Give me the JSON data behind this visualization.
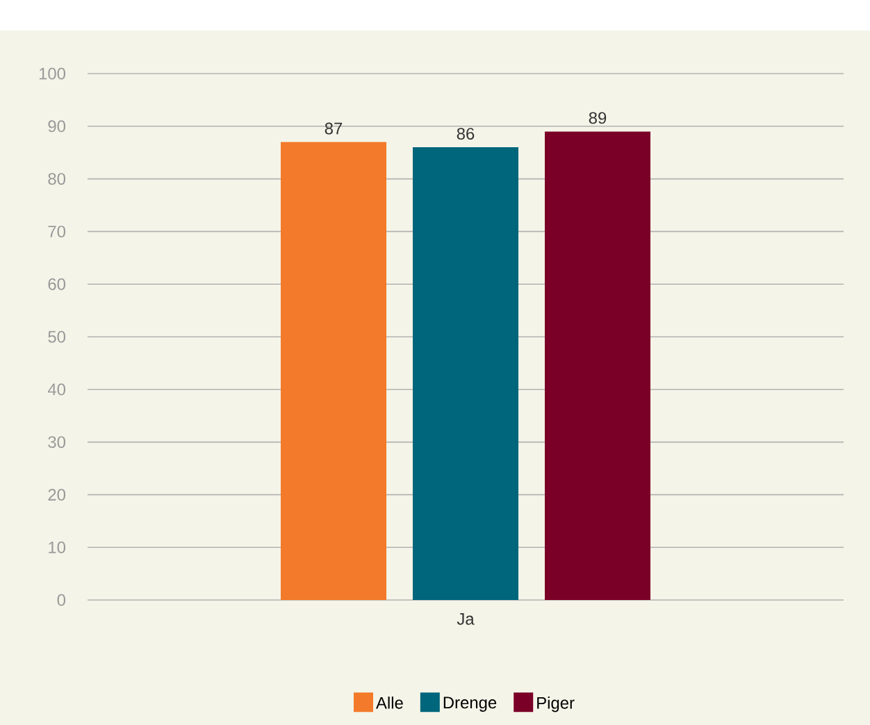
{
  "chart_data": {
    "type": "bar",
    "categories": [
      "Ja"
    ],
    "series": [
      {
        "name": "Alle",
        "color": "#f37a2a",
        "values": [
          87
        ]
      },
      {
        "name": "Drenge",
        "color": "#00667c",
        "values": [
          86
        ]
      },
      {
        "name": "Piger",
        "color": "#7b0027",
        "values": [
          89
        ]
      }
    ],
    "ylim": [
      0,
      100
    ],
    "yticks": [
      0,
      10,
      20,
      30,
      40,
      50,
      60,
      70,
      80,
      90,
      100
    ],
    "grid": "y",
    "legend": "bottom",
    "data_labels": true
  }
}
